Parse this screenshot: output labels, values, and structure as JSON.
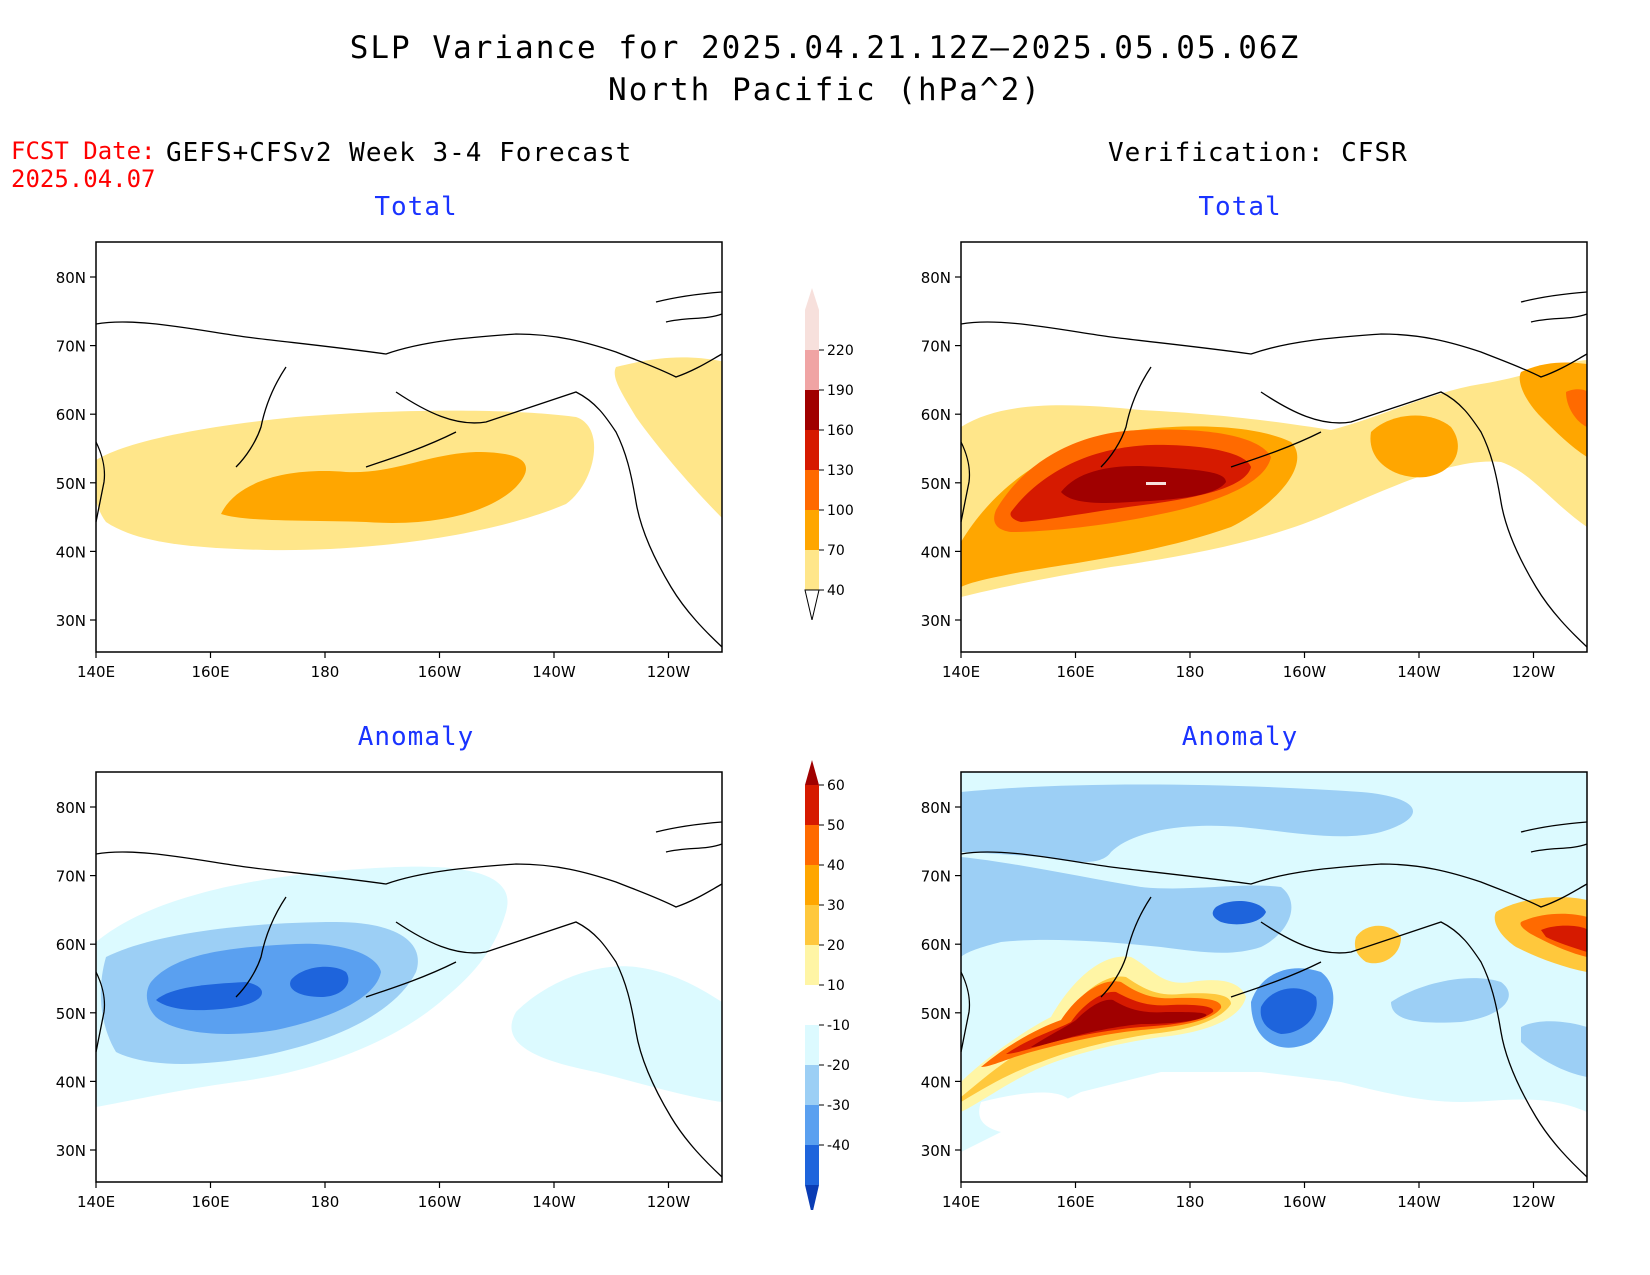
{
  "title": {
    "line1": "SLP Variance for 2025.04.21.12Z–2025.05.05.06Z",
    "line2": "North Pacific (hPa^2)"
  },
  "fcst_date": {
    "label": "FCST Date:",
    "value": "2025.04.07"
  },
  "left_header": "GEFS+CFSv2 Week 3-4 Forecast",
  "right_header": "Verification: CFSR",
  "panels": {
    "fcst_total": {
      "subtitle": "Total"
    },
    "verif_total": {
      "subtitle": "Total"
    },
    "fcst_anom": {
      "subtitle": "Anomaly"
    },
    "verif_anom": {
      "subtitle": "Anomaly"
    }
  },
  "axes": {
    "lat_labels": [
      "80N",
      "70N",
      "60N",
      "50N",
      "40N",
      "30N"
    ],
    "lon_labels": [
      "140E",
      "160E",
      "180",
      "160W",
      "140W",
      "120W"
    ]
  },
  "total_colorbar": {
    "labels": [
      "220",
      "190",
      "160",
      "130",
      "100",
      "70",
      "40"
    ],
    "colors": [
      "#f7e0dc",
      "#f0a4a4",
      "#a00000",
      "#d61a00",
      "#ff6a00",
      "#ffa600",
      "#ffe68a"
    ]
  },
  "anomaly_colorbar": {
    "labels": [
      "60",
      "50",
      "40",
      "30",
      "20",
      "10",
      "-10",
      "-20",
      "-30",
      "-40"
    ],
    "colors": [
      "#a00000",
      "#d61a00",
      "#ff6a00",
      "#ffa600",
      "#ffc83c",
      "#fff5a5",
      "#ffffff",
      "#dcfaff",
      "#9ccff5",
      "#5aa0f0",
      "#1e64dc",
      "#0a3cb4"
    ]
  },
  "colors": {
    "title_text": "#000000",
    "fcst_text": "#ff0000",
    "subtitle_text": "#1a33ff"
  }
}
